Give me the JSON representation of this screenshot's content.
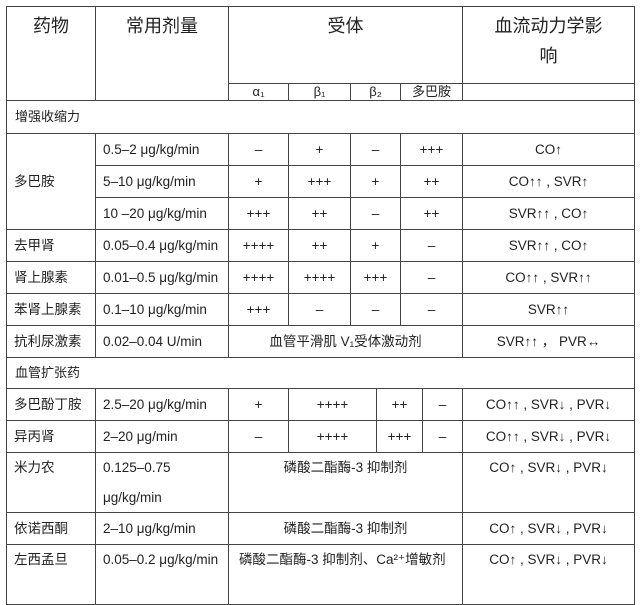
{
  "header": {
    "drug": "药物",
    "dose": "常用剂量",
    "receptor": "受体",
    "hemodynamics": "血流动力学影响",
    "receptor_cols": [
      "α₁",
      "β₁",
      "β₂",
      "多巴胺"
    ]
  },
  "sections": [
    {
      "title": "增强收缩力",
      "drugs": [
        {
          "name": "多巴胺",
          "rows": [
            {
              "dose": "0.5–2 μg/kg/min",
              "r": [
                "–",
                "+",
                "–",
                "+++"
              ],
              "effect": "CO↑"
            },
            {
              "dose": "5–10 μg/kg/min",
              "r": [
                "+",
                "+++",
                "+",
                "++"
              ],
              "effect": "CO↑↑ , SVR↑"
            },
            {
              "dose": "10 –20 μg/kg/min",
              "r": [
                "+++",
                "++",
                "–",
                "++"
              ],
              "effect": "SVR↑↑ , CO↑"
            }
          ]
        },
        {
          "name": "去甲肾",
          "rows": [
            {
              "dose": "0.05–0.4 μg/kg/min",
              "r": [
                "++++",
                "++",
                "+",
                "–"
              ],
              "effect": "SVR↑↑ , CO↑"
            }
          ]
        },
        {
          "name": "肾上腺素",
          "rows": [
            {
              "dose": "0.01–0.5 μg/kg/min",
              "r": [
                "++++",
                "++++",
                "+++",
                "–"
              ],
              "effect": "CO↑↑ , SVR↑↑"
            }
          ]
        },
        {
          "name": "苯肾上腺素",
          "rows": [
            {
              "dose": "0.1–10 μg/kg/min",
              "r": [
                "+++",
                "–",
                "–",
                "–"
              ],
              "effect": "SVR↑↑"
            }
          ]
        },
        {
          "name": "抗利尿激素",
          "rows": [
            {
              "dose": "0.02–0.04 U/min",
              "merged": "血管平滑肌 V₁受体激动剂",
              "effect": "SVR↑↑ ，  PVR↔"
            }
          ]
        }
      ]
    },
    {
      "title": "血管扩张药",
      "drugs": [
        {
          "name": "多巴酚丁胺",
          "rows": [
            {
              "dose": "2.5–20 μg/kg/min",
              "r": [
                "+",
                "++++",
                "++",
                "–"
              ],
              "effect": "CO↑↑ , SVR↓ , PVR↓"
            }
          ]
        },
        {
          "name": "异丙肾",
          "rows": [
            {
              "dose": "2–20 μg/min",
              "r": [
                "–",
                "++++",
                "+++",
                "–"
              ],
              "effect": "CO↑↑ , SVR↓ , PVR↓"
            }
          ]
        },
        {
          "name": "米力农",
          "rows": [
            {
              "dose": "0.125–0.75 μg/kg/min",
              "merged": "磷酸二酯酶-3 抑制剂",
              "effect": "CO↑ , SVR↓ , PVR↓",
              "tall": true
            }
          ]
        },
        {
          "name": "依诺西酮",
          "rows": [
            {
              "dose": "2–10 μg/kg/min",
              "merged": "磷酸二酯酶-3 抑制剂",
              "effect": "CO↑ , SVR↓ , PVR↓"
            }
          ]
        },
        {
          "name": "左西孟旦",
          "rows": [
            {
              "dose": "0.05–0.2 μg/kg/min",
              "merged": "磷酸二酯酶-3 抑制剂、Ca²⁺增敏剂",
              "effect": "CO↑ , SVR↓ , PVR↓",
              "tall": true
            }
          ]
        }
      ]
    }
  ]
}
